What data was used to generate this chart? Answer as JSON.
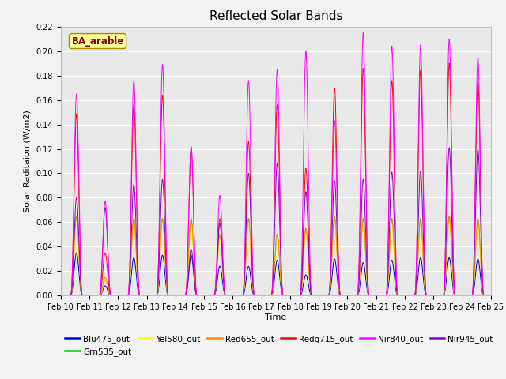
{
  "title": "Reflected Solar Bands",
  "xlabel": "Time",
  "ylabel": "Solar Raditaion (W/m2)",
  "annotation": "BA_arable",
  "ylim": [
    0,
    0.22
  ],
  "xtick_labels": [
    "Feb 10",
    "Feb 11",
    "Feb 12",
    "Feb 13",
    "Feb 14",
    "Feb 15",
    "Feb 16",
    "Feb 17",
    "Feb 18",
    "Feb 19",
    "Feb 20",
    "Feb 21",
    "Feb 22",
    "Feb 23",
    "Feb 24",
    "Feb 25"
  ],
  "legend_entries": [
    "Blu475_out",
    "Grn535_out",
    "Yel580_out",
    "Red655_out",
    "Redg715_out",
    "Nir840_out",
    "Nir945_out"
  ],
  "line_colors": {
    "Blu475_out": "#0000cc",
    "Grn535_out": "#00cc00",
    "Yel580_out": "#ffff00",
    "Red655_out": "#ff8800",
    "Redg715_out": "#ff0000",
    "Nir840_out": "#ff00ff",
    "Nir945_out": "#8800cc"
  },
  "background_color": "#e8e8e8",
  "grid_color": "#ffffff",
  "annotation_bg": "#ffff99",
  "annotation_fg": "#880000",
  "fig_bg": "#f2f2f2"
}
